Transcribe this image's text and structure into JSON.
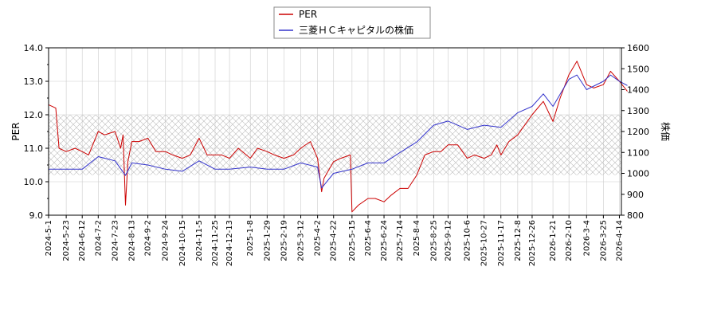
{
  "chart_data": {
    "type": "line",
    "legend": {
      "placement": "top-center",
      "entries": [
        {
          "label": "PER",
          "color": "#cc0000"
        },
        {
          "label": "三菱ＨＣキャピタルの株価",
          "color": "#3333cc"
        }
      ]
    },
    "ylabel_left": "PER",
    "ylabel_right": "株価",
    "ylim_left": [
      9.0,
      14.0
    ],
    "ylim_right": [
      800,
      1600
    ],
    "yticks_left": [
      "9.0",
      "10.0",
      "11.0",
      "12.0",
      "13.0",
      "14.0"
    ],
    "yticks_right": [
      "800",
      "900",
      "1000",
      "1100",
      "1200",
      "1300",
      "1400",
      "1500",
      "1600"
    ],
    "grid": true,
    "hatched_band": {
      "axis": "left",
      "from": 10.2,
      "to": 12.0
    },
    "x_tick_labels": [
      "2024-5-1",
      "2024-5-23",
      "2024-6-12",
      "2024-7-2",
      "2024-7-23",
      "2024-8-13",
      "2024-9-2",
      "2024-9-24",
      "2024-10-15",
      "2024-11-5",
      "2024-11-25",
      "2024-12-13",
      "2025-1-8",
      "2025-1-29",
      "2025-2-19",
      "2025-3-12",
      "2025-4-2",
      "2025-4-22",
      "2025-5-15",
      "2025-6-4",
      "2025-6-24",
      "2025-7-14",
      "2025-8-4",
      "2025-8-25",
      "2025-9-12",
      "2025-10-6",
      "2025-10-27",
      "2025-11-17",
      "2025-12-8",
      "2025-12-26",
      "2026-1-21",
      "2026-2-10",
      "2026-3-4",
      "2026-3-25",
      "2026-4-14"
    ],
    "series": [
      {
        "name": "PER",
        "axis": "left",
        "color": "#cc0000",
        "x": [
          "2024-5-1",
          "2024-5-10",
          "2024-5-14",
          "2024-5-23",
          "2024-6-3",
          "2024-6-12",
          "2024-6-20",
          "2024-7-2",
          "2024-7-10",
          "2024-7-23",
          "2024-7-30",
          "2024-8-2",
          "2024-8-5",
          "2024-8-8",
          "2024-8-13",
          "2024-8-22",
          "2024-9-2",
          "2024-9-12",
          "2024-9-24",
          "2024-10-3",
          "2024-10-15",
          "2024-10-25",
          "2024-11-5",
          "2024-11-15",
          "2024-11-25",
          "2024-12-3",
          "2024-12-13",
          "2024-12-24",
          "2025-1-8",
          "2025-1-17",
          "2025-1-29",
          "2025-2-7",
          "2025-2-19",
          "2025-3-3",
          "2025-3-12",
          "2025-3-24",
          "2025-4-2",
          "2025-4-7",
          "2025-4-10",
          "2025-4-22",
          "2025-5-1",
          "2025-5-13",
          "2025-5-15",
          "2025-5-23",
          "2025-6-4",
          "2025-6-13",
          "2025-6-24",
          "2025-7-3",
          "2025-7-14",
          "2025-7-24",
          "2025-8-4",
          "2025-8-14",
          "2025-8-25",
          "2025-9-3",
          "2025-9-12",
          "2025-9-24",
          "2025-10-6",
          "2025-10-15",
          "2025-10-27",
          "2025-11-5",
          "2025-11-12",
          "2025-11-17",
          "2025-11-27",
          "2025-12-8",
          "2025-12-17",
          "2025-12-26",
          "2026-1-9",
          "2026-1-21",
          "2026-1-30",
          "2026-2-10",
          "2026-2-20",
          "2026-3-4",
          "2026-3-13",
          "2026-3-25",
          "2026-4-3",
          "2026-4-14",
          "2026-4-24"
        ],
        "values": [
          12.3,
          12.2,
          11.0,
          10.9,
          11.0,
          10.9,
          10.8,
          11.5,
          11.4,
          11.5,
          11.0,
          11.4,
          9.3,
          10.6,
          11.2,
          11.2,
          11.3,
          10.9,
          10.9,
          10.8,
          10.7,
          10.8,
          11.3,
          10.8,
          10.8,
          10.8,
          10.7,
          11.0,
          10.7,
          11.0,
          10.9,
          10.8,
          10.7,
          10.8,
          11.0,
          11.2,
          10.7,
          9.7,
          10.1,
          10.6,
          10.7,
          10.8,
          9.1,
          9.3,
          9.5,
          9.5,
          9.4,
          9.6,
          9.8,
          9.8,
          10.2,
          10.8,
          10.9,
          10.9,
          11.1,
          11.1,
          10.7,
          10.8,
          10.7,
          10.8,
          11.1,
          10.8,
          11.2,
          11.4,
          11.7,
          12.0,
          12.4,
          11.8,
          12.5,
          13.2,
          13.6,
          12.9,
          12.8,
          12.9,
          13.3,
          13.0,
          12.7
        ]
      },
      {
        "name": "三菱ＨＣキャピタルの株価",
        "axis": "right",
        "color": "#3333cc",
        "x": [
          "2024-5-1",
          "2024-5-23",
          "2024-6-12",
          "2024-7-2",
          "2024-7-23",
          "2024-8-5",
          "2024-8-13",
          "2024-9-2",
          "2024-9-24",
          "2024-10-15",
          "2024-11-5",
          "2024-11-25",
          "2024-12-13",
          "2025-1-8",
          "2025-1-29",
          "2025-2-19",
          "2025-3-12",
          "2025-4-2",
          "2025-4-7",
          "2025-4-22",
          "2025-5-15",
          "2025-6-4",
          "2025-6-24",
          "2025-7-14",
          "2025-8-4",
          "2025-8-25",
          "2025-9-12",
          "2025-9-24",
          "2025-10-6",
          "2025-10-27",
          "2025-11-17",
          "2025-12-8",
          "2025-12-26",
          "2026-1-9",
          "2026-1-21",
          "2026-2-10",
          "2026-2-20",
          "2026-3-4",
          "2026-3-25",
          "2026-4-3",
          "2026-4-14",
          "2026-4-24"
        ],
        "values": [
          1020,
          1020,
          1020,
          1080,
          1060,
          990,
          1050,
          1040,
          1020,
          1010,
          1060,
          1020,
          1020,
          1030,
          1020,
          1020,
          1050,
          1030,
          930,
          1000,
          1020,
          1050,
          1050,
          1100,
          1150,
          1230,
          1250,
          1230,
          1210,
          1230,
          1220,
          1290,
          1320,
          1380,
          1320,
          1450,
          1470,
          1400,
          1440,
          1470,
          1440,
          1420
        ]
      }
    ]
  }
}
